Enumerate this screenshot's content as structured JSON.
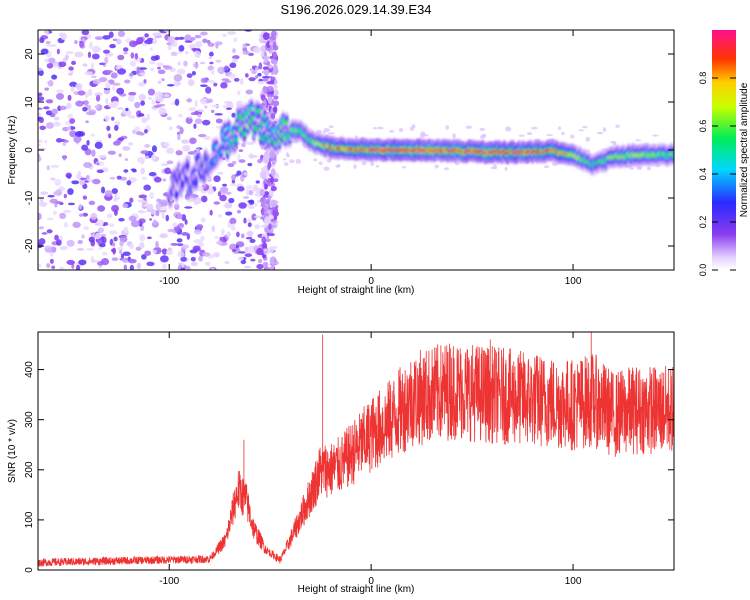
{
  "title": "S196.2026.029.14.39.E34",
  "chart_data": [
    {
      "type": "heatmap",
      "panel": "spectrogram",
      "xlabel": "Height of straight line (km)",
      "ylabel": "Frequency (Hz)",
      "xlim": [
        -165,
        150
      ],
      "ylim": [
        -25,
        25
      ],
      "xticks": [
        -100,
        0,
        100
      ],
      "yticks": [
        -20,
        -10,
        0,
        10,
        20
      ],
      "colorbar": {
        "label": "Normalized spectral amplitude",
        "range": [
          0.0,
          1.0
        ],
        "ticks": [
          "0.0",
          "0.2",
          "0.4",
          "0.6",
          "0.8"
        ]
      },
      "ridge": {
        "x": [
          -100,
          -90,
          -80,
          -70,
          -60,
          -50,
          -45,
          -40,
          -35,
          -30,
          -25,
          -20,
          -10,
          0,
          10,
          20,
          40,
          60,
          80,
          90,
          100,
          105,
          110,
          120,
          130,
          150
        ],
        "y": [
          -8,
          -6,
          -2,
          3,
          7,
          3,
          4,
          4,
          4,
          2,
          1,
          0.5,
          0.3,
          0,
          0,
          0,
          -0.2,
          -0.5,
          -0.4,
          -0.2,
          -1,
          -2,
          -3,
          -1.5,
          -1,
          -1
        ],
        "amplitude": [
          0.25,
          0.3,
          0.35,
          0.5,
          0.6,
          0.5,
          0.55,
          0.6,
          0.6,
          0.6,
          0.7,
          0.8,
          0.85,
          0.9,
          0.95,
          0.95,
          0.9,
          0.95,
          0.9,
          0.85,
          0.75,
          0.6,
          0.5,
          0.65,
          0.7,
          0.6
        ]
      }
    },
    {
      "type": "line",
      "panel": "snr",
      "xlabel": "Height of straight line (km)",
      "ylabel": "SNR (10 * v/v)",
      "xlim": [
        -165,
        150
      ],
      "ylim": [
        0,
        475
      ],
      "xticks": [
        -100,
        0,
        100
      ],
      "yticks": [
        0,
        100,
        200,
        300,
        400
      ],
      "color": "#ee3333",
      "envelope": {
        "x": [
          -165,
          -80,
          -72,
          -66,
          -62,
          -58,
          -52,
          -45,
          -40,
          -30,
          -25,
          -20,
          -15,
          -10,
          -5,
          0,
          10,
          20,
          30,
          40,
          60,
          80,
          100,
          110,
          120,
          130,
          150
        ],
        "y": [
          15,
          22,
          60,
          160,
          140,
          80,
          40,
          20,
          60,
          150,
          200,
          200,
          210,
          230,
          250,
          270,
          300,
          340,
          350,
          360,
          350,
          340,
          330,
          340,
          310,
          320,
          320
        ]
      },
      "spikes": [
        {
          "x": -63,
          "y": 260
        },
        {
          "x": -24,
          "y": 470
        },
        {
          "x": 59,
          "y": 460
        },
        {
          "x": 109,
          "y": 475
        }
      ]
    }
  ]
}
